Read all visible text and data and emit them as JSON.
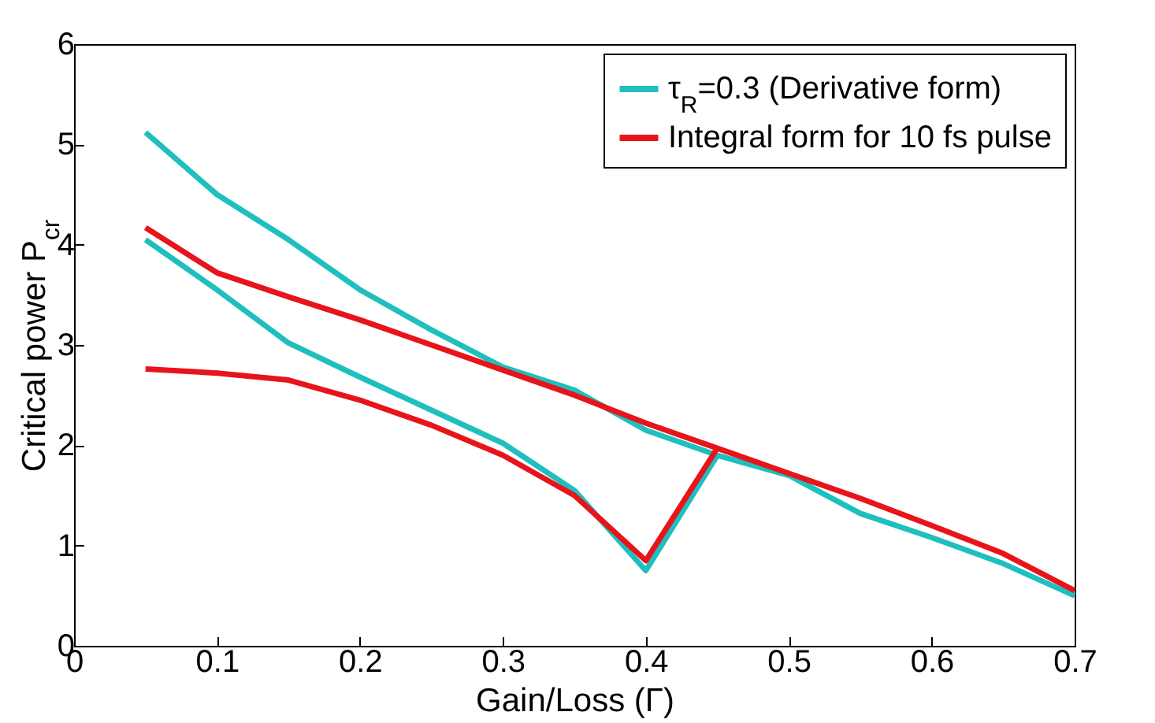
{
  "chart_data": {
    "type": "line",
    "xlabel": "Gain/Loss (Γ)",
    "ylabel": "Critical power P$_{cr}$",
    "xlim": [
      0,
      0.7
    ],
    "xticks": [
      0,
      0.1,
      0.2,
      0.3,
      0.4,
      0.5,
      0.6,
      0.7
    ],
    "ylim": [
      0,
      6
    ],
    "yticks": [
      0,
      1,
      2,
      3,
      4,
      5,
      6
    ],
    "grid": false,
    "legend": "top right",
    "line_style": "solid",
    "marker": "none",
    "series": [
      {
        "name": "τ$_{R}$=0.3 (Derivative form)",
        "color": "#1fbfbf",
        "x": [
          0.05,
          0.1,
          0.15,
          0.2,
          0.25,
          0.3,
          0.35,
          0.4,
          0.45,
          0.5,
          0.55,
          0.6,
          0.65,
          0.7
        ],
        "values": [
          5.12,
          4.5,
          4.05,
          3.55,
          3.15,
          2.78,
          2.55,
          2.15,
          1.9,
          1.7,
          1.32,
          1.08,
          0.82,
          0.5
        ]
      },
      {
        "color": "#1fbfbf",
        "x": [
          0.05,
          0.1,
          0.15,
          0.2,
          0.25,
          0.3,
          0.35,
          0.4,
          0.45
        ],
        "values": [
          4.05,
          3.55,
          3.02,
          2.68,
          2.35,
          2.02,
          1.55,
          0.75,
          1.9
        ]
      },
      {
        "name": "Integral form for 10 fs pulse",
        "color": "#e8141b",
        "x": [
          0.05,
          0.1,
          0.15,
          0.2,
          0.25,
          0.3,
          0.35,
          0.4,
          0.45,
          0.5,
          0.55,
          0.6,
          0.65,
          0.7
        ],
        "values": [
          4.17,
          3.72,
          3.48,
          3.25,
          3.0,
          2.75,
          2.5,
          2.22,
          1.97,
          1.72,
          1.47,
          1.2,
          0.92,
          0.55
        ]
      },
      {
        "color": "#e8141b",
        "x": [
          0.05,
          0.1,
          0.15,
          0.2,
          0.25,
          0.3,
          0.35,
          0.4,
          0.45
        ],
        "values": [
          2.76,
          2.72,
          2.65,
          2.45,
          2.2,
          1.9,
          1.5,
          0.85,
          1.97
        ]
      }
    ]
  }
}
